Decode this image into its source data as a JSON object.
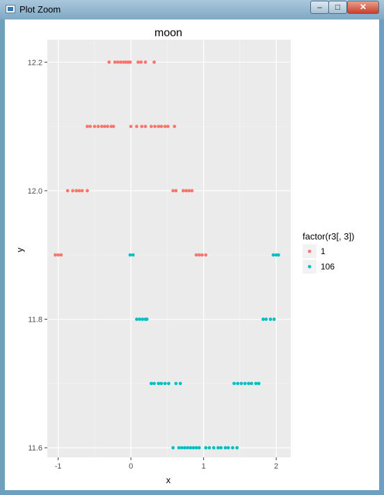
{
  "window": {
    "title": "Plot Zoom",
    "controls": {
      "minimize_icon": "minimize-icon",
      "maximize_icon": "maximize-icon",
      "close_icon": "close-icon"
    }
  },
  "chart_data": {
    "type": "scatter",
    "title": "moon",
    "xlabel": "x",
    "ylabel": "y",
    "xlim": [
      -1.15,
      2.2
    ],
    "ylim": [
      11.585,
      12.235
    ],
    "xticks": [
      -1,
      0,
      1,
      2
    ],
    "xtick_labels": [
      "-1",
      "0",
      "1",
      "2"
    ],
    "yticks": [
      11.6,
      11.8,
      12.0,
      12.2
    ],
    "ytick_labels": [
      "11.6",
      "11.8",
      "12.0",
      "12.2"
    ],
    "grid": true,
    "legend": {
      "title": "factor(r3[, 3])",
      "position": "right",
      "entries": [
        {
          "label": "1",
          "color": "#F8766D"
        },
        {
          "label": "106",
          "color": "#00BFC4"
        }
      ]
    },
    "series": [
      {
        "name": "1",
        "color": "#F8766D",
        "points": [
          [
            -0.3,
            12.2
          ],
          [
            -0.22,
            12.2
          ],
          [
            -0.18,
            12.2
          ],
          [
            -0.14,
            12.2
          ],
          [
            -0.1,
            12.2
          ],
          [
            -0.07,
            12.2
          ],
          [
            -0.04,
            12.2
          ],
          [
            -0.01,
            12.2
          ],
          [
            0.1,
            12.2
          ],
          [
            0.14,
            12.2
          ],
          [
            0.2,
            12.2
          ],
          [
            0.32,
            12.2
          ],
          [
            -0.6,
            12.1
          ],
          [
            -0.56,
            12.1
          ],
          [
            -0.5,
            12.1
          ],
          [
            -0.45,
            12.1
          ],
          [
            -0.4,
            12.1
          ],
          [
            -0.36,
            12.1
          ],
          [
            -0.32,
            12.1
          ],
          [
            -0.27,
            12.1
          ],
          [
            -0.24,
            12.1
          ],
          [
            0.0,
            12.1
          ],
          [
            0.08,
            12.1
          ],
          [
            0.15,
            12.1
          ],
          [
            0.2,
            12.1
          ],
          [
            0.28,
            12.1
          ],
          [
            0.33,
            12.1
          ],
          [
            0.38,
            12.1
          ],
          [
            0.42,
            12.1
          ],
          [
            0.47,
            12.1
          ],
          [
            0.51,
            12.1
          ],
          [
            0.6,
            12.1
          ],
          [
            -0.87,
            12.0
          ],
          [
            -0.8,
            12.0
          ],
          [
            -0.75,
            12.0
          ],
          [
            -0.71,
            12.0
          ],
          [
            -0.67,
            12.0
          ],
          [
            -0.6,
            12.0
          ],
          [
            0.58,
            12.0
          ],
          [
            0.62,
            12.0
          ],
          [
            0.72,
            12.0
          ],
          [
            0.76,
            12.0
          ],
          [
            0.8,
            12.0
          ],
          [
            0.84,
            12.0
          ],
          [
            -1.04,
            11.9
          ],
          [
            -1.0,
            11.9
          ],
          [
            -0.96,
            11.9
          ],
          [
            0.9,
            11.9
          ],
          [
            0.94,
            11.9
          ],
          [
            0.98,
            11.9
          ],
          [
            1.03,
            11.9
          ]
        ]
      },
      {
        "name": "106",
        "color": "#00BFC4",
        "points": [
          [
            -0.01,
            11.9
          ],
          [
            0.03,
            11.9
          ],
          [
            1.96,
            11.9
          ],
          [
            2.0,
            11.9
          ],
          [
            2.03,
            11.9
          ],
          [
            0.08,
            11.8
          ],
          [
            0.12,
            11.8
          ],
          [
            0.16,
            11.8
          ],
          [
            0.2,
            11.8
          ],
          [
            0.22,
            11.8
          ],
          [
            1.82,
            11.8
          ],
          [
            1.86,
            11.8
          ],
          [
            1.92,
            11.8
          ],
          [
            1.97,
            11.8
          ],
          [
            0.28,
            11.7
          ],
          [
            0.32,
            11.7
          ],
          [
            0.38,
            11.7
          ],
          [
            0.42,
            11.7
          ],
          [
            0.47,
            11.7
          ],
          [
            0.52,
            11.7
          ],
          [
            0.62,
            11.7
          ],
          [
            0.68,
            11.7
          ],
          [
            1.42,
            11.7
          ],
          [
            1.47,
            11.7
          ],
          [
            1.52,
            11.7
          ],
          [
            1.57,
            11.7
          ],
          [
            1.62,
            11.7
          ],
          [
            1.66,
            11.7
          ],
          [
            1.72,
            11.7
          ],
          [
            1.76,
            11.7
          ],
          [
            0.58,
            11.6
          ],
          [
            0.66,
            11.6
          ],
          [
            0.7,
            11.6
          ],
          [
            0.74,
            11.6
          ],
          [
            0.78,
            11.6
          ],
          [
            0.82,
            11.6
          ],
          [
            0.86,
            11.6
          ],
          [
            0.9,
            11.6
          ],
          [
            0.94,
            11.6
          ],
          [
            1.03,
            11.6
          ],
          [
            1.08,
            11.6
          ],
          [
            1.14,
            11.6
          ],
          [
            1.2,
            11.6
          ],
          [
            1.24,
            11.6
          ],
          [
            1.3,
            11.6
          ],
          [
            1.34,
            11.6
          ],
          [
            1.4,
            11.6
          ],
          [
            1.46,
            11.6
          ]
        ]
      }
    ]
  }
}
